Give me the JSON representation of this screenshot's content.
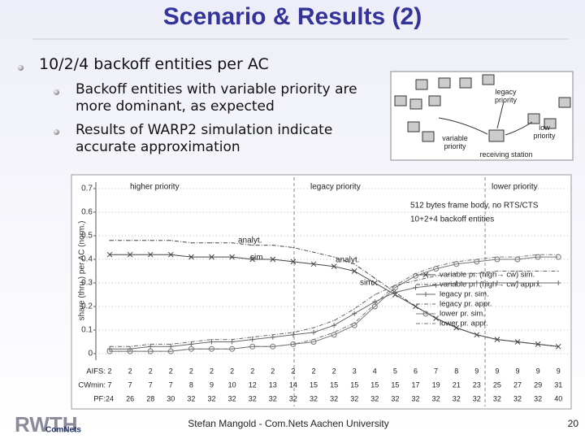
{
  "slide": {
    "title": "Scenario & Results (2)",
    "bullets": [
      {
        "text": "10/2/4 backoff entities per AC",
        "sub": [
          "Backoff entities with variable priority are more dominant, as expected",
          "Results of WARP2 simulation indicate accurate approximation"
        ]
      }
    ],
    "footer": "Stefan Mangold - Com.Nets Aachen University",
    "page": "20",
    "logo": [
      "RWTH",
      "ComNets"
    ]
  },
  "diagram": {
    "labels": [
      "legacy priority",
      "low priority",
      "variable priority",
      "receiving station"
    ]
  },
  "chart_data": {
    "type": "line",
    "ylabel": "share (thru.) per AC (norm.)",
    "ylim": [
      0,
      0.7
    ],
    "yticks": [
      0,
      0.1,
      0.2,
      0.3,
      0.4,
      0.5,
      0.6,
      0.7
    ],
    "grid": true,
    "regions": [
      "higher priority",
      "legacy priority",
      "lower priority"
    ],
    "notes": [
      "512 bytes frame body, no RTS/CTS",
      "10+2+4 backoff entities"
    ],
    "curve_labels": [
      "analyt.",
      "sim.",
      "analyt.",
      "sim."
    ],
    "series": [
      {
        "name": "variable pr. (high→ cw) sim.",
        "color": "#444444",
        "marker": "x",
        "dash": false,
        "values": [
          0.42,
          0.42,
          0.42,
          0.42,
          0.41,
          0.41,
          0.41,
          0.4,
          0.4,
          0.39,
          0.38,
          0.37,
          0.35,
          0.3,
          0.25,
          0.2,
          0.15,
          0.11,
          0.08,
          0.06,
          0.05,
          0.04,
          0.03
        ]
      },
      {
        "name": "variable pr. (high→ cw) apprx.",
        "color": "#444444",
        "marker": "none",
        "dash": true,
        "values": [
          0.48,
          0.48,
          0.48,
          0.48,
          0.47,
          0.47,
          0.47,
          0.46,
          0.46,
          0.45,
          0.43,
          0.41,
          0.38,
          0.32,
          0.26,
          0.2,
          0.15,
          0.11,
          0.08,
          0.06,
          0.05,
          0.04,
          0.03
        ]
      },
      {
        "name": "legacy pr. sim.",
        "color": "#666666",
        "marker": "plus",
        "dash": false,
        "values": [
          0.02,
          0.02,
          0.03,
          0.03,
          0.04,
          0.05,
          0.05,
          0.06,
          0.07,
          0.08,
          0.09,
          0.12,
          0.17,
          0.22,
          0.26,
          0.28,
          0.29,
          0.3,
          0.3,
          0.3,
          0.3,
          0.3,
          0.3
        ]
      },
      {
        "name": "legacy pr. appr.",
        "color": "#666666",
        "marker": "none",
        "dash": true,
        "values": [
          0.03,
          0.03,
          0.04,
          0.04,
          0.05,
          0.06,
          0.06,
          0.07,
          0.08,
          0.09,
          0.11,
          0.14,
          0.19,
          0.25,
          0.29,
          0.31,
          0.33,
          0.34,
          0.34,
          0.35,
          0.35,
          0.35,
          0.35
        ]
      },
      {
        "name": "lower pr. sim.",
        "color": "#777777",
        "marker": "circle",
        "dash": false,
        "values": [
          0.01,
          0.01,
          0.01,
          0.01,
          0.02,
          0.02,
          0.02,
          0.03,
          0.03,
          0.04,
          0.05,
          0.08,
          0.12,
          0.2,
          0.28,
          0.33,
          0.36,
          0.38,
          0.39,
          0.4,
          0.4,
          0.41,
          0.41
        ]
      },
      {
        "name": "lower pr. appr.",
        "color": "#777777",
        "marker": "none",
        "dash": true,
        "values": [
          0.01,
          0.01,
          0.01,
          0.01,
          0.02,
          0.02,
          0.02,
          0.03,
          0.03,
          0.04,
          0.06,
          0.09,
          0.13,
          0.21,
          0.29,
          0.34,
          0.37,
          0.39,
          0.4,
          0.41,
          0.41,
          0.42,
          0.42
        ]
      }
    ],
    "parameters": [
      {
        "name": "AIFS:",
        "values": [
          2,
          2,
          2,
          2,
          2,
          2,
          2,
          2,
          2,
          2,
          2,
          2,
          3,
          4,
          5,
          6,
          7,
          8,
          9,
          9,
          9,
          9,
          9
        ]
      },
      {
        "name": "CWmin:",
        "values": [
          7,
          7,
          7,
          7,
          8,
          9,
          10,
          12,
          13,
          14,
          15,
          15,
          15,
          15,
          15,
          17,
          19,
          21,
          23,
          25,
          27,
          29,
          31
        ]
      },
      {
        "name": "PF:",
        "values": [
          24,
          26,
          28,
          30,
          32,
          32,
          32,
          32,
          32,
          32,
          32,
          32,
          32,
          32,
          32,
          32,
          32,
          32,
          32,
          32,
          32,
          32,
          40
        ]
      }
    ]
  }
}
